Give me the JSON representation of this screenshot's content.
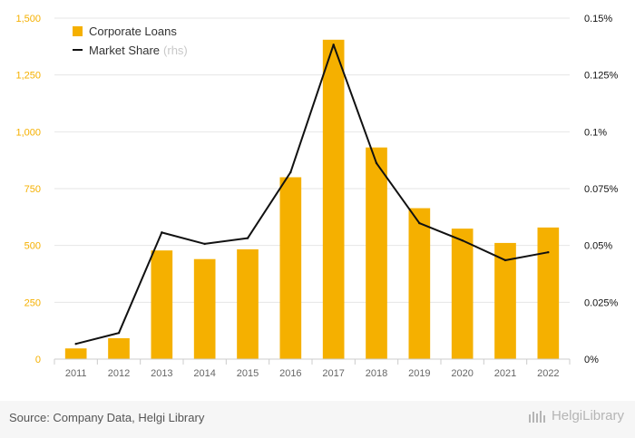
{
  "chart_data": {
    "type": "bar",
    "categories": [
      "2011",
      "2012",
      "2013",
      "2014",
      "2015",
      "2016",
      "2017",
      "2018",
      "2019",
      "2020",
      "2021",
      "2022"
    ],
    "series": [
      {
        "name": "Corporate Loans",
        "type": "bar",
        "axis": "left",
        "color": "#f5b000",
        "values": [
          47,
          92,
          478,
          440,
          483,
          800,
          1405,
          931,
          664,
          574,
          511,
          579
        ]
      },
      {
        "name": "Market Share",
        "type": "line",
        "axis": "right",
        "color": "#111111",
        "values": [
          0.0067,
          0.0115,
          0.0557,
          0.0507,
          0.0532,
          0.0822,
          0.1383,
          0.0862,
          0.0598,
          0.0522,
          0.0435,
          0.047
        ]
      }
    ],
    "legend_rhs_note": "(rhs)",
    "y_left": {
      "ylim": [
        0,
        1500
      ],
      "ticks": [
        0,
        250,
        500,
        750,
        1000,
        1250,
        1500
      ],
      "tick_labels": [
        "0",
        "250",
        "500",
        "750",
        "1,000",
        "1,250",
        "1,500"
      ],
      "color": "#f5b000"
    },
    "y_right": {
      "ylim": [
        0,
        0.15
      ],
      "ticks": [
        0,
        0.025,
        0.05,
        0.075,
        0.1,
        0.125,
        0.15
      ],
      "tick_labels": [
        "0%",
        "0.025%",
        "0.05%",
        "0.075%",
        "0.1%",
        "0.125%",
        "0.15%"
      ],
      "color": "#111111"
    },
    "grid": true,
    "legend_position": "top-left"
  },
  "footer": {
    "source": "Source: Company Data, Helgi Library",
    "brand": "HelgiLibrary",
    "brand_icon": "helgi-logo-icon"
  }
}
